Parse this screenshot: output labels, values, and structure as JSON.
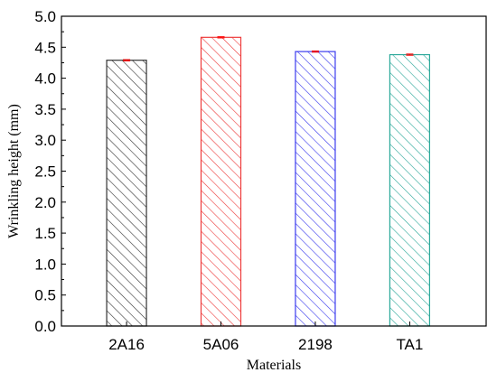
{
  "chart_data": {
    "type": "bar",
    "categories": [
      "2A16",
      "5A06",
      "2198",
      "TA1"
    ],
    "values": [
      4.29,
      4.66,
      4.43,
      4.38
    ],
    "error": [
      0.01,
      0.01,
      0.01,
      0.01
    ],
    "xlabel": "Materials",
    "ylabel": "Wrinkling height (mm)",
    "ylim": [
      0.0,
      5.0
    ],
    "yticks": [
      "0.0",
      "0.5",
      "1.0",
      "1.5",
      "2.0",
      "2.5",
      "3.0",
      "3.5",
      "4.0",
      "4.5",
      "5.0"
    ],
    "bar_colors": [
      "#333333",
      "#ee3b3b",
      "#3b3bee",
      "#2aa89a"
    ],
    "error_color": "#ff0000",
    "bar_fill": "hatch-diagonal",
    "grid": false,
    "legend": "none"
  }
}
